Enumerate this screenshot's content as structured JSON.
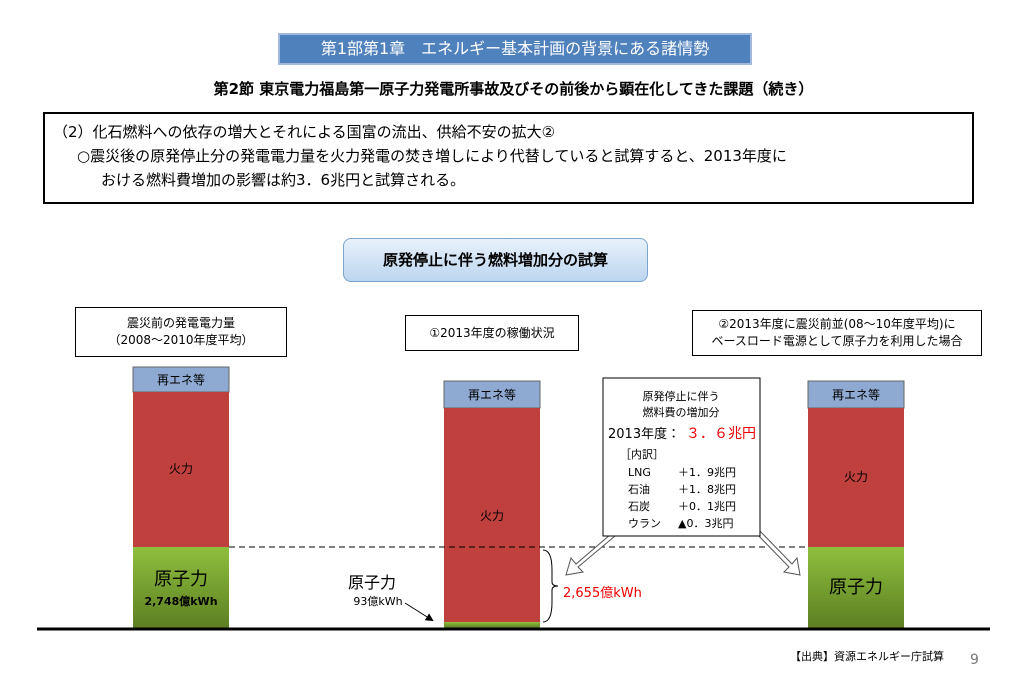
{
  "header": {
    "title": "第1部第1章　エネルギー基本計画の背景にある諸情勢",
    "section": "第2節 東京電力福島第一原子力発電所事故及びその前後から顕在化してきた課題（続き）"
  },
  "summary": {
    "heading": "（2）化石燃料への依存の増大とそれによる国富の流出、供給不安の拡大②",
    "lines": [
      "○震災後の原発停止分の発電電力量を火力発電の焚き増しにより代替していると試算すると、2013年度に",
      "おける燃料費増加の影響は約3．6兆円と試算される。"
    ]
  },
  "diagram": {
    "title": "原発停止に伴う燃料増加分の試算",
    "columns": [
      {
        "label": [
          "震災前の発電電力量",
          "（2008～2010年度平均）"
        ],
        "renewable": "再エネ等",
        "thermal": "火力",
        "nuclear": "原子力",
        "nuclear_amount": "2,748億kWh"
      },
      {
        "label": [
          "①2013年度の稼働状況"
        ],
        "renewable": "再エネ等",
        "thermal": "火力",
        "nuclear": "原子力",
        "nuclear_amount": "93億kWh"
      },
      {
        "label": [
          "②2013年度に震災前並(08～10年度平均)に",
          "ベースロード電源として原子力を利用した場合"
        ],
        "renewable": "再エネ等",
        "thermal": "火力",
        "nuclear": "原子力"
      }
    ],
    "gap_label": "2,655億kWh",
    "callout": {
      "title": [
        "原発停止に伴う",
        "燃料費の増加分"
      ],
      "year": "2013年度：",
      "total": "３．６兆円",
      "breakdown": "［内訳］",
      "items": [
        [
          "LNG",
          "＋1．9兆円"
        ],
        [
          "石油",
          "＋1．8兆円"
        ],
        [
          "石炭",
          "＋0．1兆円"
        ],
        [
          "ウラン",
          "▲0．3兆円"
        ]
      ]
    }
  },
  "footer": {
    "source": "【出典】資源エネルギー庁試算",
    "page": "9"
  }
}
